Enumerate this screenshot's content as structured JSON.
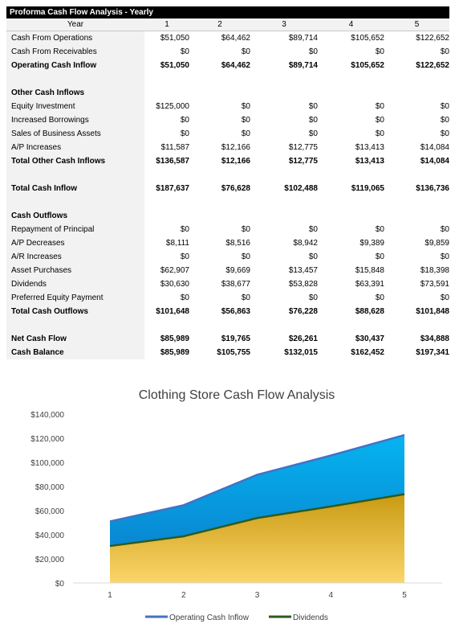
{
  "sheet": {
    "title": "Proforma Cash Flow Analysis - Yearly",
    "year_label": "Year",
    "years": [
      "1",
      "2",
      "3",
      "4",
      "5"
    ],
    "rows": [
      {
        "label": "Cash From Operations",
        "values": [
          "$51,050",
          "$64,462",
          "$89,714",
          "$105,652",
          "$122,652"
        ],
        "bold": false
      },
      {
        "label": "Cash From Receivables",
        "values": [
          "$0",
          "$0",
          "$0",
          "$0",
          "$0"
        ],
        "bold": false
      },
      {
        "label": "Operating Cash Inflow",
        "values": [
          "$51,050",
          "$64,462",
          "$89,714",
          "$105,652",
          "$122,652"
        ],
        "bold": true
      },
      {
        "label": "",
        "values": [
          "",
          "",
          "",
          "",
          ""
        ],
        "bold": false
      },
      {
        "label": "Other Cash Inflows",
        "values": [
          "",
          "",
          "",
          "",
          ""
        ],
        "bold": true
      },
      {
        "label": "Equity Investment",
        "values": [
          "$125,000",
          "$0",
          "$0",
          "$0",
          "$0"
        ],
        "bold": false
      },
      {
        "label": "Increased Borrowings",
        "values": [
          "$0",
          "$0",
          "$0",
          "$0",
          "$0"
        ],
        "bold": false
      },
      {
        "label": "Sales of Business Assets",
        "values": [
          "$0",
          "$0",
          "$0",
          "$0",
          "$0"
        ],
        "bold": false
      },
      {
        "label": "A/P Increases",
        "values": [
          "$11,587",
          "$12,166",
          "$12,775",
          "$13,413",
          "$14,084"
        ],
        "bold": false
      },
      {
        "label": "Total Other Cash Inflows",
        "values": [
          "$136,587",
          "$12,166",
          "$12,775",
          "$13,413",
          "$14,084"
        ],
        "bold": true
      },
      {
        "label": "",
        "values": [
          "",
          "",
          "",
          "",
          ""
        ],
        "bold": false
      },
      {
        "label": "Total Cash Inflow",
        "values": [
          "$187,637",
          "$76,628",
          "$102,488",
          "$119,065",
          "$136,736"
        ],
        "bold": true
      },
      {
        "label": "",
        "values": [
          "",
          "",
          "",
          "",
          ""
        ],
        "bold": false
      },
      {
        "label": "Cash Outflows",
        "values": [
          "",
          "",
          "",
          "",
          ""
        ],
        "bold": true
      },
      {
        "label": "Repayment of Principal",
        "values": [
          "$0",
          "$0",
          "$0",
          "$0",
          "$0"
        ],
        "bold": false
      },
      {
        "label": "A/P Decreases",
        "values": [
          "$8,111",
          "$8,516",
          "$8,942",
          "$9,389",
          "$9,859"
        ],
        "bold": false
      },
      {
        "label": "A/R Increases",
        "values": [
          "$0",
          "$0",
          "$0",
          "$0",
          "$0"
        ],
        "bold": false
      },
      {
        "label": "Asset Purchases",
        "values": [
          "$62,907",
          "$9,669",
          "$13,457",
          "$15,848",
          "$18,398"
        ],
        "bold": false
      },
      {
        "label": "Dividends",
        "values": [
          "$30,630",
          "$38,677",
          "$53,828",
          "$63,391",
          "$73,591"
        ],
        "bold": false
      },
      {
        "label": "Preferred Equity Payment",
        "values": [
          "$0",
          "$0",
          "$0",
          "$0",
          "$0"
        ],
        "bold": false
      },
      {
        "label": "Total Cash Outflows",
        "values": [
          "$101,648",
          "$56,863",
          "$76,228",
          "$88,628",
          "$101,848"
        ],
        "bold": true
      },
      {
        "label": "",
        "values": [
          "",
          "",
          "",
          "",
          ""
        ],
        "bold": false
      },
      {
        "label": "Net Cash Flow",
        "values": [
          "$85,989",
          "$19,765",
          "$26,261",
          "$30,437",
          "$34,888"
        ],
        "bold": true
      },
      {
        "label": "Cash Balance",
        "values": [
          "$85,989",
          "$105,755",
          "$132,015",
          "$162,452",
          "$197,341"
        ],
        "bold": true
      }
    ]
  },
  "chart_data": {
    "type": "area",
    "title": "Clothing Store Cash Flow Analysis",
    "x": [
      1,
      2,
      3,
      4,
      5
    ],
    "ylim": [
      0,
      140000
    ],
    "yticks": [
      0,
      20000,
      40000,
      60000,
      80000,
      100000,
      120000,
      140000
    ],
    "ytick_labels": [
      "$0",
      "$20,000",
      "$40,000",
      "$60,000",
      "$80,000",
      "$100,000",
      "$120,000",
      "$140,000"
    ],
    "grid": false,
    "legend": "bottom",
    "series": [
      {
        "name": "Operating Cash Inflow",
        "values": [
          51050,
          64462,
          89714,
          105652,
          122652
        ],
        "color": "#4472c4",
        "fill": "#1fa3e0"
      },
      {
        "name": "Dividends",
        "values": [
          30630,
          38677,
          53828,
          63391,
          73591
        ],
        "color": "#2e5a1c",
        "fill": "#e0b33a"
      }
    ]
  }
}
